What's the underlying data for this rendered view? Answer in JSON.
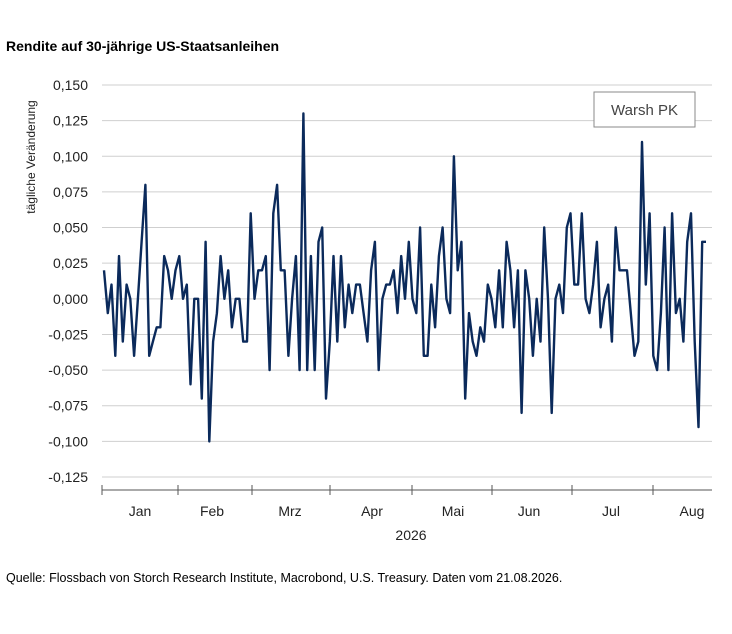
{
  "chart_title": "Rendite auf 30-jährige US-Staatsanleihen",
  "source_note": "Quelle: Flossbach von Storch Research Institute, Macrobond, U.S. Treasury. Daten vom 21.08.2026.",
  "chart_data": {
    "type": "line",
    "title": "Rendite auf 30-jährige US-Staatsanleihen",
    "ylabel": "tägliche Veränderung",
    "xlabel": "2026",
    "ylim": [
      -0.125,
      0.15
    ],
    "ytick_values": [
      -0.125,
      -0.1,
      -0.075,
      -0.05,
      -0.025,
      0,
      0.025,
      0.05,
      0.075,
      0.1,
      0.125,
      0.15
    ],
    "ytick_labels": [
      "-0,125",
      "-0,100",
      "-0,075",
      "-0,050",
      "-0,025",
      "0,000",
      "0,025",
      "0,050",
      "0,075",
      "0,100",
      "0,125",
      "0,150"
    ],
    "xtick_labels": [
      "Jan",
      "Feb",
      "Mrz",
      "Apr",
      "Mai",
      "Jun",
      "Jul",
      "Aug"
    ],
    "grid": "horizontal",
    "line_color": "#0b2a5b",
    "annotation": "Warsh PK",
    "series": [
      {
        "values": [
          0.02,
          -0.01,
          0.01,
          -0.04,
          0.03,
          -0.03,
          0.01,
          0.0,
          -0.04,
          0.0,
          0.04,
          0.08,
          -0.04,
          -0.03,
          -0.02,
          -0.02,
          0.03,
          0.02,
          0.0,
          0.02,
          0.03,
          0.0,
          0.01,
          -0.06,
          0.0,
          0.0,
          -0.07,
          0.04,
          -0.1,
          -0.03,
          -0.01,
          0.03,
          0.0,
          0.02,
          -0.02,
          0.0,
          0.0,
          -0.03,
          -0.03,
          0.06,
          0.0,
          0.02,
          0.02,
          0.03,
          -0.05,
          0.06,
          0.08,
          0.02,
          0.02,
          -0.04,
          0.0,
          0.03,
          -0.05,
          0.13,
          -0.05,
          0.03,
          -0.05,
          0.04,
          0.05,
          -0.07,
          -0.03,
          0.03,
          -0.03,
          0.03,
          -0.02,
          0.01,
          -0.01,
          0.01,
          0.01,
          -0.01,
          -0.03,
          0.02,
          0.04,
          -0.05,
          0.0,
          0.01,
          0.01,
          0.02,
          -0.01,
          0.03,
          0.0,
          0.04,
          0.0,
          -0.01,
          0.05,
          -0.04,
          -0.04,
          0.01,
          -0.02,
          0.03,
          0.05,
          0.0,
          -0.01,
          0.1,
          0.02,
          0.04,
          -0.07,
          -0.01,
          -0.03,
          -0.04,
          -0.02,
          -0.03,
          0.01,
          0.0,
          -0.02,
          0.02,
          -0.02,
          0.04,
          0.02,
          -0.02,
          0.02,
          -0.08,
          0.02,
          0.0,
          -0.04,
          0.0,
          -0.03,
          0.05,
          0.0,
          -0.08,
          0.0,
          0.01,
          -0.01,
          0.05,
          0.06,
          0.01,
          0.01,
          0.06,
          0.0,
          -0.01,
          0.01,
          0.04,
          -0.02,
          0.0,
          0.01,
          -0.03,
          0.05,
          0.02,
          0.02,
          0.02,
          -0.01,
          -0.04,
          -0.03,
          0.11,
          0.01,
          0.06,
          -0.04,
          -0.05,
          -0.01,
          0.05,
          -0.05,
          0.06,
          -0.01,
          0.0,
          -0.03,
          0.04,
          0.06,
          -0.03,
          -0.09,
          0.04,
          0.04
        ]
      }
    ]
  }
}
